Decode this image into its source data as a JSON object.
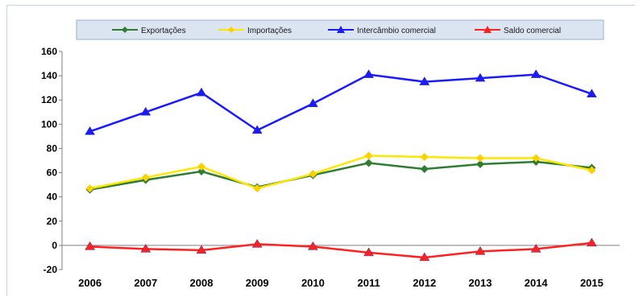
{
  "chart_data": {
    "type": "line",
    "categories": [
      "2006",
      "2007",
      "2008",
      "2009",
      "2010",
      "2011",
      "2012",
      "2013",
      "2014",
      "2015"
    ],
    "ylim": [
      -20,
      160
    ],
    "yticks": [
      "160",
      "140",
      "120",
      "100",
      "80",
      "60",
      "40",
      "20",
      "0",
      "-20"
    ],
    "grid": false,
    "legend": "top",
    "series": [
      {
        "name": "Exportações",
        "color": "#2e7d32",
        "marker": "diamond",
        "values": [
          46,
          54,
          61,
          48,
          58,
          68,
          63,
          67,
          69,
          64
        ]
      },
      {
        "name": "Importações",
        "color": "#ffe600",
        "marker": "diamond",
        "values": [
          47,
          56,
          65,
          47,
          59,
          74,
          73,
          72,
          72,
          62
        ]
      },
      {
        "name": "Intercâmbio comercial",
        "color": "#1a1aff",
        "marker": "triangle",
        "values": [
          94,
          110,
          126,
          95,
          117,
          141,
          135,
          138,
          141,
          125
        ]
      },
      {
        "name": "Saldo comercial",
        "color": "#ff2020",
        "marker": "triangle",
        "values": [
          -1,
          -3,
          -4,
          1,
          -1,
          -6,
          -10,
          -5,
          -3,
          2
        ]
      }
    ]
  }
}
